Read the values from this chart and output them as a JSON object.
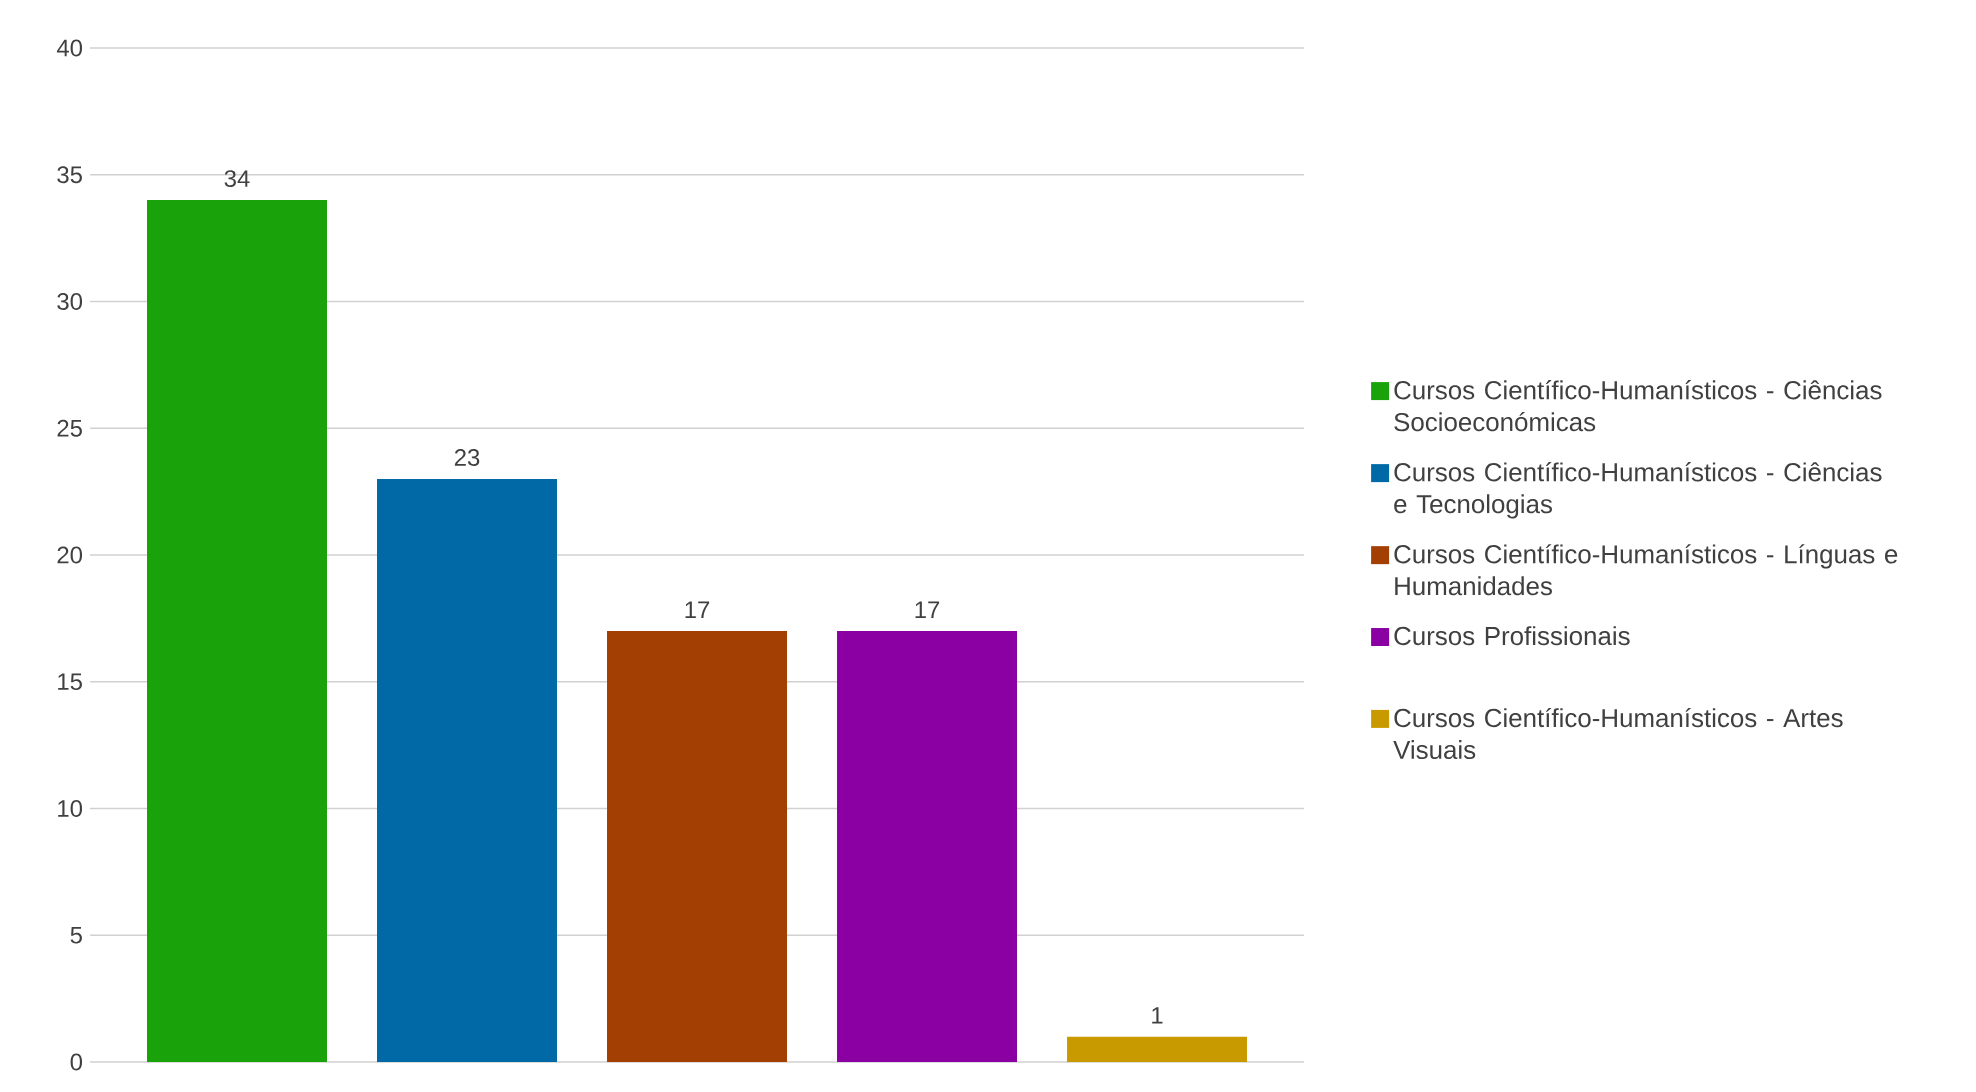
{
  "chart_data": {
    "type": "bar",
    "categories": [
      null
    ],
    "series": [
      {
        "name": "Cursos Científico-Humanísticos - Ciências Socioeconómicas",
        "color": "#1aa20a",
        "values": [
          34
        ]
      },
      {
        "name": "Cursos Científico-Humanísticos - Ciências e Tecnologias",
        "color": "#0069a6",
        "values": [
          23
        ]
      },
      {
        "name": "Cursos Científico-Humanísticos - Línguas e Humanidades",
        "color": "#a33f03",
        "values": [
          17
        ]
      },
      {
        "name": "Cursos Profissionais",
        "color": "#8b00a3",
        "values": [
          17
        ]
      },
      {
        "name": "Cursos Científico-Humanísticos - Artes Visuais",
        "color": "#c99a00",
        "values": [
          1
        ]
      }
    ],
    "ylim": [
      0,
      40
    ],
    "yticks": [
      0,
      5,
      10,
      15,
      20,
      25,
      30,
      35,
      40
    ],
    "grid": "y",
    "legend": "right",
    "data_labels": true
  }
}
